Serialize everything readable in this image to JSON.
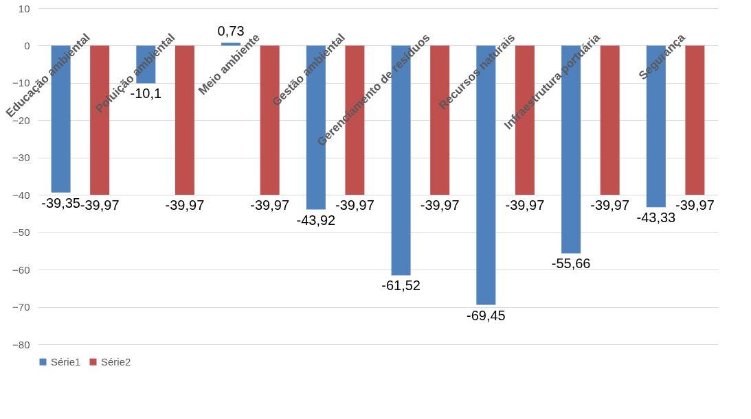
{
  "chart_data": {
    "type": "bar",
    "categories": [
      "Educação ambiental",
      "Poluição ambiental",
      "Meio ambiente",
      "Gestão ambiental",
      "Gerenciamento de resíduos",
      "Recursos naturais",
      "Infraestrutura portuária",
      "Segurança"
    ],
    "series": [
      {
        "name": "Série1",
        "color": "#4f81bd",
        "values": [
          -39.35,
          -10.1,
          0.73,
          -43.92,
          -61.52,
          -69.45,
          -55.66,
          -43.33
        ],
        "value_labels": [
          "-39,35",
          "-10,1",
          "0,73",
          "-43,92",
          "-61,52",
          "-69,45",
          "-55,66",
          "-43,33"
        ]
      },
      {
        "name": "Série2",
        "color": "#c0504d",
        "values": [
          -39.97,
          -39.97,
          -39.97,
          -39.97,
          -39.97,
          -39.97,
          -39.97,
          -39.97
        ],
        "value_labels": [
          "-39,97",
          "-39,97",
          "-39,97",
          "-39,97",
          "-39,97",
          "-39,97",
          "-39,97",
          "-39,97"
        ]
      }
    ],
    "ylim": [
      -80,
      10
    ],
    "yticks": [
      -80,
      -70,
      -60,
      -50,
      -40,
      -30,
      -20,
      -10,
      0,
      10
    ],
    "grid": "y",
    "legend": "bottom"
  }
}
